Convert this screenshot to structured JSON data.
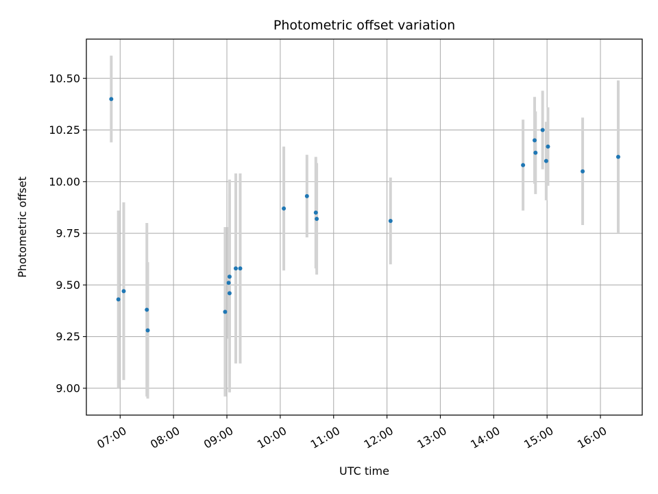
{
  "chart_data": {
    "type": "scatter",
    "title": "Photometric offset variation",
    "xlabel": "UTC time",
    "ylabel": "Photometric offset",
    "x_ticks": [
      "07:00",
      "08:00",
      "09:00",
      "10:00",
      "11:00",
      "12:00",
      "13:00",
      "14:00",
      "15:00",
      "16:00"
    ],
    "y_ticks": [
      "9.00",
      "9.25",
      "9.50",
      "9.75",
      "10.00",
      "10.25",
      "10.50"
    ],
    "xlim": [
      "06:22",
      "16:47"
    ],
    "ylim": [
      8.87,
      10.69
    ],
    "grid": true,
    "colors": {
      "point": "#1f77b4",
      "errorbar": "#d3d3d3",
      "grid": "#b0b0b0"
    },
    "points": [
      {
        "x": "06:50",
        "y": 10.4,
        "err": 0.21
      },
      {
        "x": "06:58",
        "y": 9.43,
        "err": 0.43
      },
      {
        "x": "07:04",
        "y": 9.47,
        "err": 0.43
      },
      {
        "x": "07:30",
        "y": 9.38,
        "err": 0.42
      },
      {
        "x": "07:31",
        "y": 9.28,
        "err": 0.33
      },
      {
        "x": "08:58",
        "y": 9.37,
        "err": 0.41
      },
      {
        "x": "09:02",
        "y": 9.51,
        "err": 0.27
      },
      {
        "x": "09:03",
        "y": 9.54,
        "err": 0.47
      },
      {
        "x": "09:03",
        "y": 9.46,
        "err": 0.48
      },
      {
        "x": "09:10",
        "y": 9.58,
        "err": 0.46
      },
      {
        "x": "09:15",
        "y": 9.58,
        "err": 0.46
      },
      {
        "x": "10:04",
        "y": 9.87,
        "err": 0.3
      },
      {
        "x": "10:30",
        "y": 9.93,
        "err": 0.2
      },
      {
        "x": "10:40",
        "y": 9.85,
        "err": 0.27
      },
      {
        "x": "10:41",
        "y": 9.82,
        "err": 0.27
      },
      {
        "x": "12:04",
        "y": 9.81,
        "err": 0.21
      },
      {
        "x": "14:33",
        "y": 10.08,
        "err": 0.22
      },
      {
        "x": "14:46",
        "y": 10.2,
        "err": 0.21
      },
      {
        "x": "14:47",
        "y": 10.14,
        "err": 0.2
      },
      {
        "x": "14:55",
        "y": 10.25,
        "err": 0.19
      },
      {
        "x": "14:59",
        "y": 10.1,
        "err": 0.19
      },
      {
        "x": "15:01",
        "y": 10.17,
        "err": 0.19
      },
      {
        "x": "15:40",
        "y": 10.05,
        "err": 0.26
      },
      {
        "x": "16:20",
        "y": 10.12,
        "err": 0.37
      }
    ]
  }
}
